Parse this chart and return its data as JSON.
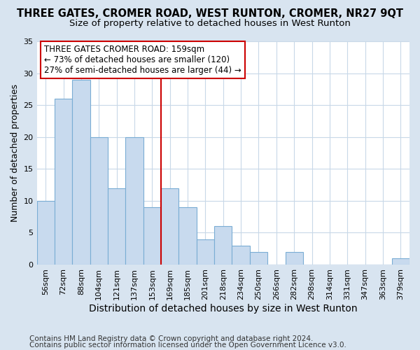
{
  "title": "THREE GATES, CROMER ROAD, WEST RUNTON, CROMER, NR27 9QT",
  "subtitle": "Size of property relative to detached houses in West Runton",
  "xlabel": "Distribution of detached houses by size in West Runton",
  "ylabel": "Number of detached properties",
  "categories": [
    "56sqm",
    "72sqm",
    "88sqm",
    "104sqm",
    "121sqm",
    "137sqm",
    "153sqm",
    "169sqm",
    "185sqm",
    "201sqm",
    "218sqm",
    "234sqm",
    "250sqm",
    "266sqm",
    "282sqm",
    "298sqm",
    "314sqm",
    "331sqm",
    "347sqm",
    "363sqm",
    "379sqm"
  ],
  "values": [
    10,
    26,
    29,
    20,
    12,
    20,
    9,
    12,
    9,
    4,
    6,
    3,
    2,
    0,
    2,
    0,
    0,
    0,
    0,
    0,
    1
  ],
  "bar_color": "#c8daee",
  "bar_edge_color": "#7aadd4",
  "vline_index": 6.5,
  "vline_color": "#cc0000",
  "annotation_line1": "THREE GATES CROMER ROAD: 159sqm",
  "annotation_line2": "← 73% of detached houses are smaller (120)",
  "annotation_line3": "27% of semi-detached houses are larger (44) →",
  "annotation_box_color": "#ffffff",
  "annotation_box_edge_color": "#cc0000",
  "ylim": [
    0,
    35
  ],
  "yticks": [
    0,
    5,
    10,
    15,
    20,
    25,
    30,
    35
  ],
  "footer1": "Contains HM Land Registry data © Crown copyright and database right 2024.",
  "footer2": "Contains public sector information licensed under the Open Government Licence v3.0.",
  "fig_background_color": "#d8e4f0",
  "plot_background_color": "#ffffff",
  "title_fontsize": 10.5,
  "subtitle_fontsize": 9.5,
  "xlabel_fontsize": 10,
  "ylabel_fontsize": 9,
  "tick_fontsize": 8,
  "annotation_fontsize": 8.5,
  "footer_fontsize": 7.5
}
